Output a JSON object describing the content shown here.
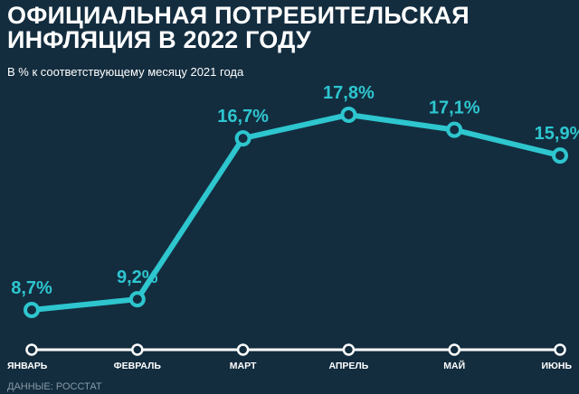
{
  "colors": {
    "background": "#132d3f",
    "line": "#2ec6cf",
    "axis": "#ffffff",
    "source_text": "#8799a6"
  },
  "chart_data": {
    "type": "line",
    "title_lines": [
      "ОФИЦИАЛЬНАЯ ПОТРЕБИТЕЛЬСКАЯ",
      "ИНФЛЯЦИЯ В 2022 ГОДУ"
    ],
    "subtitle": "В % к соответствующему месяцу 2021 года",
    "source": "ДАННЫЕ: РОССТАТ",
    "categories": [
      "ЯНВАРЬ",
      "ФЕВРАЛЬ",
      "МАРТ",
      "АПРЕЛЬ",
      "МАЙ",
      "ИЮНЬ"
    ],
    "values": [
      8.7,
      9.2,
      16.7,
      17.8,
      17.1,
      15.9
    ],
    "data_labels": [
      "8,7%",
      "9,2%",
      "16,7%",
      "17,8%",
      "17,1%",
      "15,9%"
    ],
    "grid": false,
    "legend": "none"
  }
}
